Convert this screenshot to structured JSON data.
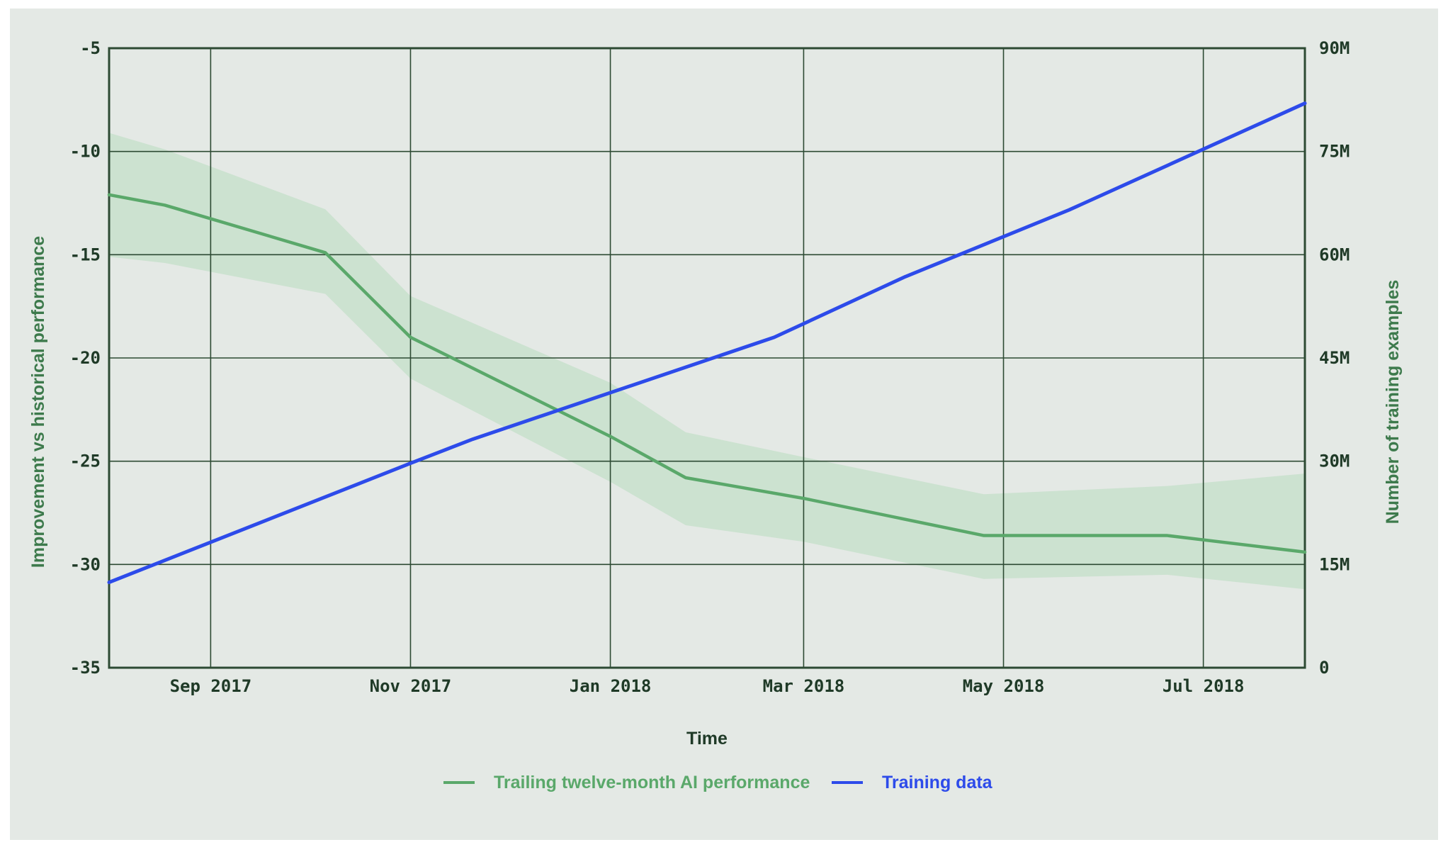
{
  "chart_data": {
    "type": "line",
    "title": "",
    "xlabel": "Time",
    "ylabel_left": "Improvement vs historical performance",
    "ylabel_right": "Number of training examples",
    "x_ticks": [
      "Sep 2017",
      "Nov 2017",
      "Jan 2018",
      "Mar 2018",
      "May 2018",
      "Jul 2018"
    ],
    "x_range": [
      "2017-08-01",
      "2018-08-01"
    ],
    "y_left_ticks": [
      -5,
      -10,
      -15,
      -20,
      -25,
      -30,
      -35
    ],
    "y_left_range": [
      -35,
      -5
    ],
    "y_right_ticks": [
      "90M",
      "75M",
      "60M",
      "45M",
      "30M",
      "15M",
      "0"
    ],
    "y_right_range": [
      0,
      90000000
    ],
    "grid": true,
    "legend_position": "bottom-center",
    "series": [
      {
        "name": "Trailing twelve-month AI performance",
        "axis": "left",
        "color": "#5aa86a",
        "band_color": "#c8e0cc",
        "points": [
          {
            "x": "2017-08-01",
            "y": -12.1,
            "lo": -15.1,
            "hi": -9.1
          },
          {
            "x": "2017-08-18",
            "y": -12.6,
            "lo": -15.4,
            "hi": -9.9
          },
          {
            "x": "2017-10-06",
            "y": -14.9,
            "lo": -16.9,
            "hi": -12.8
          },
          {
            "x": "2017-11-01",
            "y": -19.0,
            "lo": -21.0,
            "hi": -17.0
          },
          {
            "x": "2018-01-01",
            "y": -23.8,
            "lo": -26.0,
            "hi": -21.2
          },
          {
            "x": "2018-01-24",
            "y": -25.8,
            "lo": -28.1,
            "hi": -23.6
          },
          {
            "x": "2018-03-01",
            "y": -26.8,
            "lo": -28.9,
            "hi": -24.8
          },
          {
            "x": "2018-04-25",
            "y": -28.6,
            "lo": -30.7,
            "hi": -26.6
          },
          {
            "x": "2018-06-20",
            "y": -28.6,
            "lo": -30.5,
            "hi": -26.2
          },
          {
            "x": "2018-08-01",
            "y": -29.4,
            "lo": -31.2,
            "hi": -25.6
          }
        ]
      },
      {
        "name": "Training data",
        "axis": "right",
        "color": "#2d4bea",
        "points": [
          {
            "x": "2017-08-01",
            "y": 12400000
          },
          {
            "x": "2017-11-01",
            "y": 29700000
          },
          {
            "x": "2017-11-20",
            "y": 33200000
          },
          {
            "x": "2018-02-20",
            "y": 48000000
          },
          {
            "x": "2018-04-01",
            "y": 56800000
          },
          {
            "x": "2018-05-21",
            "y": 66500000
          },
          {
            "x": "2018-08-01",
            "y": 82000000
          }
        ]
      }
    ]
  }
}
